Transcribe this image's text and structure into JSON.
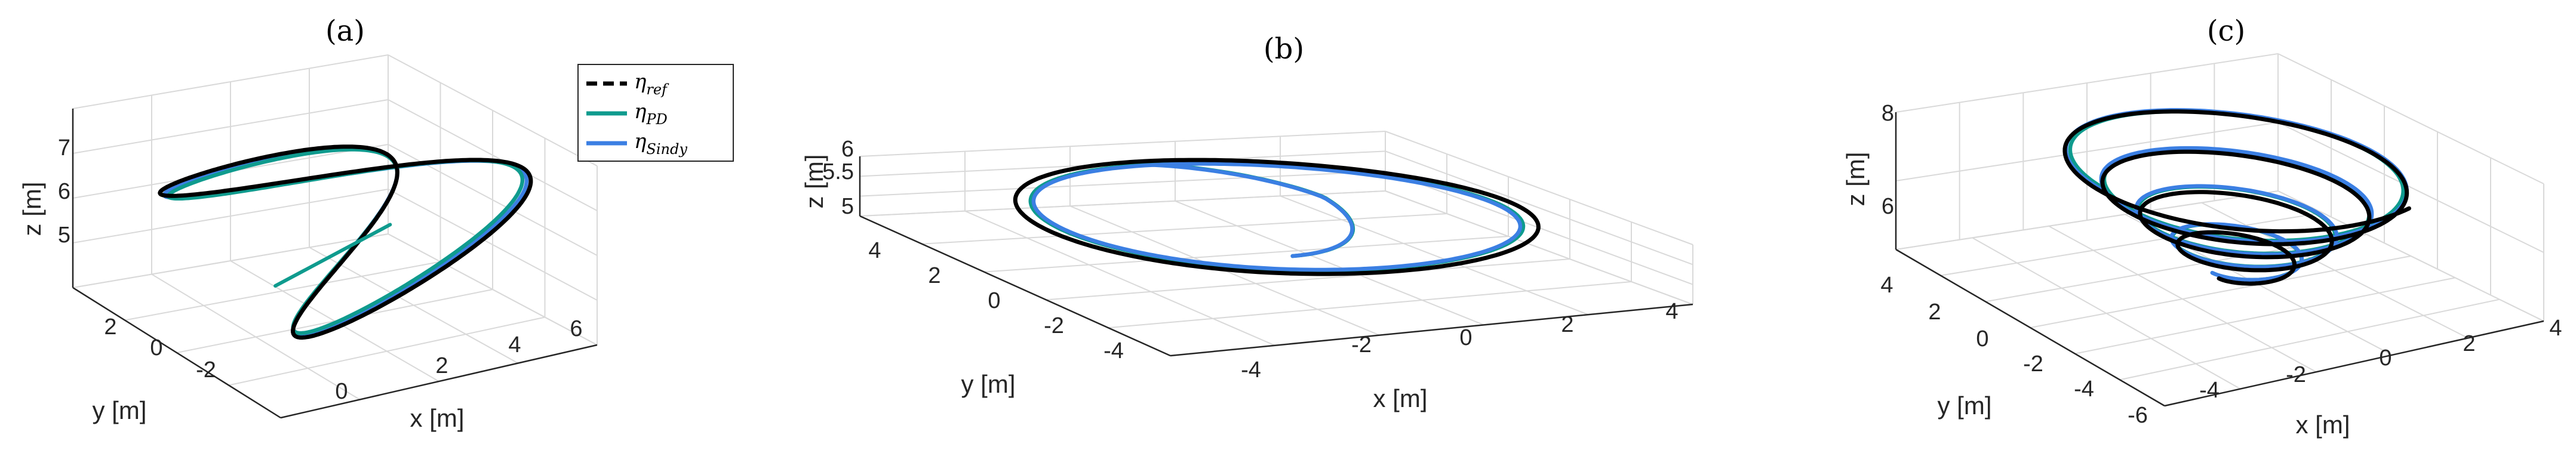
{
  "colors": {
    "ref": "#000000",
    "pd": "#0f9b8e",
    "sindy": "#3b7fe3",
    "grid": "#d9d9d9",
    "axis": "#262626"
  },
  "legend": {
    "ref": {
      "symbol": "η",
      "sub": "ref"
    },
    "pd": {
      "symbol": "η",
      "sub": "PD"
    },
    "sindy": {
      "symbol": "η",
      "sub": "Sindy"
    }
  },
  "chart_data": [
    {
      "type": "line",
      "title": "(a)",
      "xlabel": "x [m]",
      "ylabel": "y [m]",
      "zlabel": "z [m]",
      "xticks": [
        "0",
        "2",
        "4",
        "6"
      ],
      "yticks": [
        "2",
        "0",
        "-2"
      ],
      "zticks": [
        "5",
        "6",
        "7"
      ],
      "xlim": [
        -0.5,
        6.5
      ],
      "ylim": [
        -4,
        3.5
      ],
      "zlim": [
        4,
        7.8
      ],
      "grid": true,
      "legend_position": "top-right",
      "trajectory": "lemniscate (figure-eight) tilted in 3D",
      "series": [
        {
          "key": "ref",
          "name": "η_ref",
          "x_center": 3,
          "x_amplitude": 3.2,
          "y_amplitude": 3.0,
          "z_center": 6.2,
          "z_amplitude": 1.5
        },
        {
          "key": "pd",
          "name": "η_PD",
          "x_center": 3,
          "x_amplitude": 3.0,
          "y_amplitude": 2.9,
          "z_center": 6.2,
          "z_amplitude": 1.45
        },
        {
          "key": "sindy",
          "name": "η_Sindy",
          "x_center": 3,
          "x_amplitude": 3.1,
          "y_amplitude": 2.95,
          "z_center": 6.2,
          "z_amplitude": 1.45
        }
      ]
    },
    {
      "type": "line",
      "title": "(b)",
      "xlabel": "x [m]",
      "ylabel": "y [m]",
      "zlabel": "z [m]",
      "xticks": [
        "-4",
        "-2",
        "0",
        "2",
        "4"
      ],
      "yticks": [
        "4",
        "2",
        "0",
        "-2",
        "-4"
      ],
      "zticks": [
        "5",
        "5.5",
        "6"
      ],
      "xlim": [
        -5,
        5
      ],
      "ylim": [
        -5,
        5
      ],
      "zlim": [
        4.8,
        6.2
      ],
      "grid": true,
      "trajectory": "horizontal circle at z = 6",
      "series": [
        {
          "key": "ref",
          "name": "η_ref",
          "radius": 4.3,
          "z": 6.0
        },
        {
          "key": "pd",
          "name": "η_PD",
          "radius": 4.05,
          "z": 6.0,
          "start": [
            0.5,
            0,
            5.2
          ]
        },
        {
          "key": "sindy",
          "name": "η_Sindy",
          "radius": 4.0,
          "z": 6.0,
          "start": [
            0.5,
            0,
            5.2
          ]
        }
      ]
    },
    {
      "type": "line",
      "title": "(c)",
      "xlabel": "x [m]",
      "ylabel": "y [m]",
      "zlabel": "z [m]",
      "xticks": [
        "-4",
        "-2",
        "0",
        "2",
        "4"
      ],
      "yticks": [
        "4",
        "2",
        "0",
        "-2",
        "-4",
        "-6"
      ],
      "zticks": [
        "6",
        "8"
      ],
      "xlim": [
        -5.5,
        4.5
      ],
      "ylim": [
        -6.5,
        5
      ],
      "zlim": [
        4.2,
        8.2
      ],
      "grid": true,
      "trajectory": "expanding helix (spiral rising with growing radius)",
      "series": [
        {
          "key": "ref",
          "name": "η_ref",
          "radius_start": 0.8,
          "radius_end": 4.6,
          "z_start": 4.6,
          "z_end": 8.0,
          "turns": 4.3
        },
        {
          "key": "pd",
          "name": "η_PD",
          "radius_start": 1.0,
          "radius_end": 4.2,
          "z_start": 4.8,
          "z_end": 7.8,
          "turns": 4.0
        },
        {
          "key": "sindy",
          "name": "η_Sindy",
          "radius_start": 1.0,
          "radius_end": 4.3,
          "z_start": 4.8,
          "z_end": 7.8,
          "turns": 4.0
        }
      ]
    }
  ]
}
